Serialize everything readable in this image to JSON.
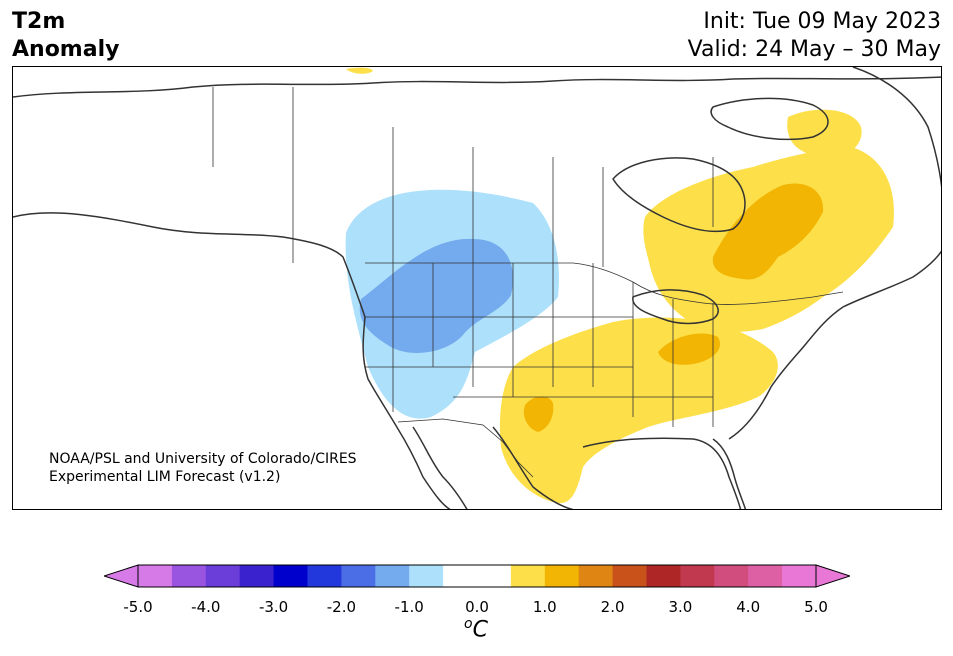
{
  "header": {
    "variable": "T2m",
    "subtitle": "Anomaly",
    "init": "Init: Tue 09 May 2023",
    "valid": "Valid: 24 May – 30 May"
  },
  "credit": {
    "line1": "NOAA/PSL and University of Colorado/CIRES",
    "line2": "Experimental LIM Forecast (v1.2)"
  },
  "colorbar": {
    "units_sup": "o",
    "units": "C",
    "ticks": [
      "-5.0",
      "-4.0",
      "-3.0",
      "-2.0",
      "-1.0",
      "0.0",
      "1.0",
      "2.0",
      "3.0",
      "4.0",
      "5.0"
    ],
    "colors": [
      "#d67ae8",
      "#9a55e0",
      "#6b3dd9",
      "#3a22cf",
      "#0000cd",
      "#2238dd",
      "#4b6ee6",
      "#74aaee",
      "#ade0fb",
      "#ffffff",
      "#ffffff",
      "#fde049",
      "#f3b504",
      "#de8514",
      "#c9521a",
      "#ae2626",
      "#c0394f",
      "#d04d7e",
      "#dd60a4",
      "#e877d6"
    ]
  },
  "map": {
    "region": "North America",
    "colors": {
      "land": "#ffffff",
      "border": "#333333",
      "warm1": "#fde049",
      "warm2": "#f3b504",
      "cool1": "#ade0fb",
      "cool2": "#74aaee"
    }
  }
}
